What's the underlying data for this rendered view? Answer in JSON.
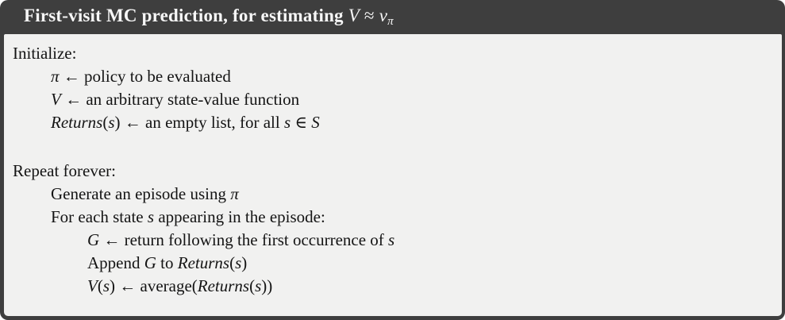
{
  "header": {
    "title_segments": [
      {
        "t": "First-visit MC prediction, for estimating ",
        "s": "rm"
      },
      {
        "t": "V",
        "s": "it"
      },
      {
        "t": " ",
        "s": "op"
      },
      {
        "t": "≈",
        "s": "op"
      },
      {
        "t": " ",
        "s": "op"
      },
      {
        "t": "v",
        "s": "it"
      },
      {
        "t": "π",
        "s": "sub"
      }
    ]
  },
  "algorithm": {
    "lines": [
      {
        "indent": 0,
        "segments": [
          {
            "t": "Initialize:",
            "s": "rm"
          }
        ]
      },
      {
        "indent": 1,
        "segments": [
          {
            "t": "π",
            "s": "it"
          },
          {
            "t": " ← policy to be evaluated",
            "s": "rm"
          }
        ]
      },
      {
        "indent": 1,
        "segments": [
          {
            "t": "V",
            "s": "it"
          },
          {
            "t": " ← an arbitrary state-value function",
            "s": "rm"
          }
        ]
      },
      {
        "indent": 1,
        "segments": [
          {
            "t": "Returns",
            "s": "it"
          },
          {
            "t": "(",
            "s": "rm"
          },
          {
            "t": "s",
            "s": "it"
          },
          {
            "t": ") ← an empty list, for all ",
            "s": "rm"
          },
          {
            "t": "s",
            "s": "it"
          },
          {
            "t": " ∈ ",
            "s": "rm"
          },
          {
            "t": "S",
            "s": "cal"
          }
        ]
      },
      {
        "indent": 0,
        "segments": []
      },
      {
        "indent": 0,
        "segments": [
          {
            "t": "Repeat forever:",
            "s": "rm"
          }
        ]
      },
      {
        "indent": 1,
        "segments": [
          {
            "t": "Generate an episode using ",
            "s": "rm"
          },
          {
            "t": "π",
            "s": "it"
          }
        ]
      },
      {
        "indent": 1,
        "segments": [
          {
            "t": "For each state ",
            "s": "rm"
          },
          {
            "t": "s",
            "s": "it"
          },
          {
            "t": " appearing in the episode:",
            "s": "rm"
          }
        ]
      },
      {
        "indent": 2,
        "segments": [
          {
            "t": "G",
            "s": "it"
          },
          {
            "t": " ← return following the first occurrence of ",
            "s": "rm"
          },
          {
            "t": "s",
            "s": "it"
          }
        ]
      },
      {
        "indent": 2,
        "segments": [
          {
            "t": "Append ",
            "s": "rm"
          },
          {
            "t": "G",
            "s": "it"
          },
          {
            "t": " to ",
            "s": "rm"
          },
          {
            "t": "Returns",
            "s": "it"
          },
          {
            "t": "(",
            "s": "rm"
          },
          {
            "t": "s",
            "s": "it"
          },
          {
            "t": ")",
            "s": "rm"
          }
        ]
      },
      {
        "indent": 2,
        "segments": [
          {
            "t": "V",
            "s": "it"
          },
          {
            "t": "(",
            "s": "rm"
          },
          {
            "t": "s",
            "s": "it"
          },
          {
            "t": ") ← average(",
            "s": "rm"
          },
          {
            "t": "Returns",
            "s": "it"
          },
          {
            "t": "(",
            "s": "rm"
          },
          {
            "t": "s",
            "s": "it"
          },
          {
            "t": "))",
            "s": "rm"
          }
        ]
      }
    ]
  },
  "colors": {
    "frame": "#3e3e3e",
    "header_bg": "#3e3e3e",
    "body_bg": "#f1f1f0",
    "title_text": "#f7f7f7",
    "body_text": "#141414"
  }
}
